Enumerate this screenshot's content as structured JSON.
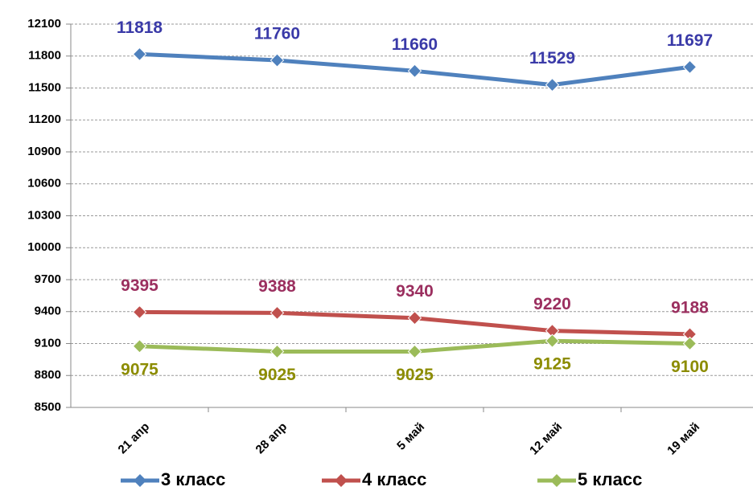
{
  "chart_data": {
    "type": "line",
    "categories": [
      "21 апр",
      "28 апр",
      "5 май",
      "12 май",
      "19 май"
    ],
    "series": [
      {
        "name": "3 класс",
        "color": "#4f81bd",
        "label_color": "#3a3aa8",
        "values": [
          11818,
          11760,
          11660,
          11529,
          11697
        ]
      },
      {
        "name": "4 класс",
        "color": "#c0504d",
        "label_color": "#9b2f5f",
        "values": [
          9395,
          9388,
          9340,
          9220,
          9188
        ]
      },
      {
        "name": "5 класс",
        "color": "#9bbb59",
        "label_color": "#8c8c00",
        "values": [
          9075,
          9025,
          9025,
          9125,
          9100
        ]
      }
    ],
    "ylim": [
      8500,
      12100
    ],
    "yticks": [
      8500,
      8800,
      9100,
      9400,
      9700,
      10000,
      10300,
      10600,
      10900,
      11200,
      11500,
      11800,
      12100
    ],
    "grid": true,
    "legend": "bottom"
  }
}
